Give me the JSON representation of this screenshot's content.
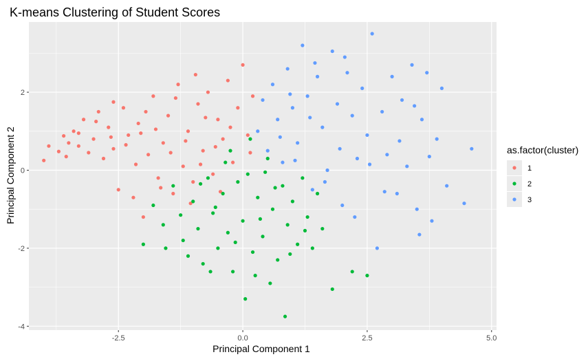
{
  "chart_data": {
    "type": "scatter",
    "title": "K-means Clustering of Student Scores",
    "xlabel": "Principal Component 1",
    "ylabel": "Principal Component 2",
    "xlim": [
      -4.3,
      5.1
    ],
    "ylim": [
      -4.1,
      3.8
    ],
    "x_ticks": [
      -2.5,
      0,
      2.5,
      5
    ],
    "x_tick_labels": [
      "-2.5",
      "0.0",
      "2.5",
      "5.0"
    ],
    "y_ticks": [
      -4,
      -2,
      0,
      2
    ],
    "y_tick_labels": [
      "-4",
      "-2",
      "0",
      "2"
    ],
    "grid": true,
    "legend": {
      "title": "as.factor(cluster)",
      "placement": "right",
      "entries": [
        {
          "label": "1",
          "color": "#F8766D"
        },
        {
          "label": "2",
          "color": "#00BA38"
        },
        {
          "label": "3",
          "color": "#619CFF"
        }
      ]
    },
    "series": [
      {
        "name": "1",
        "color": "#F8766D",
        "points": [
          [
            -4.0,
            0.25
          ],
          [
            -3.9,
            0.62
          ],
          [
            -3.7,
            0.48
          ],
          [
            -3.6,
            0.88
          ],
          [
            -3.5,
            0.7
          ],
          [
            -3.4,
            1.0
          ],
          [
            -3.3,
            0.62
          ],
          [
            -3.2,
            1.3
          ],
          [
            -3.1,
            0.45
          ],
          [
            -3.0,
            0.8
          ],
          [
            -2.9,
            1.5
          ],
          [
            -2.8,
            0.3
          ],
          [
            -2.7,
            1.1
          ],
          [
            -2.6,
            0.55
          ],
          [
            -2.5,
            -0.5
          ],
          [
            -2.4,
            1.6
          ],
          [
            -2.3,
            0.9
          ],
          [
            -2.2,
            -0.7
          ],
          [
            -2.1,
            1.2
          ],
          [
            -2.0,
            -1.2
          ],
          [
            -1.9,
            0.4
          ],
          [
            -1.8,
            1.9
          ],
          [
            -1.7,
            -0.2
          ],
          [
            -1.6,
            0.7
          ],
          [
            -1.5,
            1.4
          ],
          [
            -1.4,
            -0.6
          ],
          [
            -1.3,
            2.2
          ],
          [
            -1.2,
            0.1
          ],
          [
            -1.1,
            1.0
          ],
          [
            -1.0,
            -0.3
          ],
          [
            -0.9,
            1.7
          ],
          [
            -0.8,
            0.5
          ],
          [
            -0.7,
            2.0
          ],
          [
            -0.6,
            -0.1
          ],
          [
            -0.5,
            1.3
          ],
          [
            -0.4,
            0.8
          ],
          [
            -0.3,
            2.3
          ],
          [
            -0.2,
            0.2
          ],
          [
            -0.1,
            1.6
          ],
          [
            0.0,
            2.7
          ],
          [
            0.1,
            0.9
          ],
          [
            0.2,
            1.9
          ],
          [
            -3.3,
            0.95
          ],
          [
            -2.95,
            1.25
          ],
          [
            -2.65,
            0.85
          ],
          [
            -2.35,
            0.65
          ],
          [
            -2.05,
            0.95
          ],
          [
            -1.75,
            1.05
          ],
          [
            -1.45,
            0.45
          ],
          [
            -1.15,
            0.75
          ],
          [
            -0.85,
            0.15
          ],
          [
            -0.55,
            0.6
          ],
          [
            -0.25,
            1.1
          ],
          [
            -1.95,
            1.5
          ],
          [
            -1.35,
            1.85
          ],
          [
            -0.75,
            1.35
          ],
          [
            -2.6,
            1.75
          ],
          [
            -3.55,
            0.35
          ],
          [
            -2.15,
            0.15
          ],
          [
            -1.65,
            -0.45
          ],
          [
            -1.05,
            -0.85
          ],
          [
            -0.45,
            -0.55
          ],
          [
            0.15,
            0.45
          ],
          [
            -0.95,
            2.45
          ]
        ]
      },
      {
        "name": "2",
        "color": "#00BA38",
        "points": [
          [
            -2.0,
            -1.9
          ],
          [
            -1.8,
            -0.9
          ],
          [
            -1.6,
            -1.4
          ],
          [
            -1.4,
            -0.4
          ],
          [
            -1.2,
            -1.8
          ],
          [
            -1.1,
            -2.2
          ],
          [
            -1.0,
            -0.8
          ],
          [
            -0.9,
            -1.5
          ],
          [
            -0.8,
            -2.4
          ],
          [
            -0.7,
            -0.2
          ],
          [
            -0.6,
            -1.1
          ],
          [
            -0.5,
            -2.0
          ],
          [
            -0.4,
            -0.6
          ],
          [
            -0.3,
            -1.6
          ],
          [
            -0.2,
            -2.6
          ],
          [
            -0.1,
            -0.3
          ],
          [
            0.0,
            -1.3
          ],
          [
            0.05,
            -3.3
          ],
          [
            0.1,
            -0.1
          ],
          [
            0.2,
            -2.1
          ],
          [
            0.3,
            -0.7
          ],
          [
            0.4,
            -1.7
          ],
          [
            0.5,
            0.3
          ],
          [
            0.6,
            -1.0
          ],
          [
            0.7,
            -2.3
          ],
          [
            0.8,
            -0.4
          ],
          [
            0.9,
            -1.4
          ],
          [
            0.85,
            -3.75
          ],
          [
            1.0,
            -0.8
          ],
          [
            1.1,
            -1.9
          ],
          [
            1.2,
            -0.2
          ],
          [
            1.3,
            -1.2
          ],
          [
            1.4,
            -2.0
          ],
          [
            1.5,
            -0.6
          ],
          [
            1.8,
            -3.05
          ],
          [
            2.2,
            -2.6
          ],
          [
            2.5,
            -2.7
          ],
          [
            1.6,
            -1.5
          ],
          [
            -0.25,
            0.5
          ],
          [
            0.15,
            0.8
          ],
          [
            -0.55,
            -0.95
          ],
          [
            -0.15,
            -1.85
          ],
          [
            0.35,
            -1.25
          ],
          [
            0.65,
            -0.45
          ],
          [
            0.95,
            -2.15
          ],
          [
            -0.85,
            -0.35
          ],
          [
            -1.25,
            -1.15
          ],
          [
            0.25,
            -2.7
          ],
          [
            -0.35,
            0.2
          ],
          [
            0.45,
            -0.05
          ],
          [
            -0.65,
            -2.6
          ],
          [
            1.25,
            -1.55
          ],
          [
            0.55,
            -2.9
          ],
          [
            -1.55,
            -2.0
          ]
        ]
      },
      {
        "name": "3",
        "color": "#619CFF",
        "points": [
          [
            0.3,
            1.0
          ],
          [
            0.4,
            1.8
          ],
          [
            0.5,
            0.5
          ],
          [
            0.6,
            2.2
          ],
          [
            0.7,
            1.3
          ],
          [
            0.8,
            0.2
          ],
          [
            0.9,
            2.6
          ],
          [
            1.0,
            1.6
          ],
          [
            1.1,
            0.7
          ],
          [
            1.2,
            3.2
          ],
          [
            1.3,
            1.9
          ],
          [
            1.4,
            -0.5
          ],
          [
            1.5,
            2.4
          ],
          [
            1.6,
            1.1
          ],
          [
            1.7,
            0.0
          ],
          [
            1.8,
            3.05
          ],
          [
            1.9,
            1.7
          ],
          [
            2.0,
            -0.9
          ],
          [
            2.1,
            2.5
          ],
          [
            2.2,
            1.4
          ],
          [
            2.3,
            0.3
          ],
          [
            2.4,
            2.1
          ],
          [
            2.5,
            0.9
          ],
          [
            2.6,
            3.5
          ],
          [
            2.7,
            -2.0
          ],
          [
            2.8,
            1.5
          ],
          [
            2.9,
            0.4
          ],
          [
            3.0,
            2.4
          ],
          [
            3.1,
            -0.6
          ],
          [
            3.2,
            1.8
          ],
          [
            3.3,
            0.1
          ],
          [
            3.4,
            2.7
          ],
          [
            3.5,
            -1.0
          ],
          [
            3.6,
            1.3
          ],
          [
            3.7,
            2.5
          ],
          [
            3.8,
            -1.3
          ],
          [
            3.9,
            0.8
          ],
          [
            4.0,
            2.1
          ],
          [
            4.1,
            -0.4
          ],
          [
            4.45,
            -0.85
          ],
          [
            4.6,
            0.55
          ],
          [
            0.75,
            0.85
          ],
          [
            1.05,
            0.25
          ],
          [
            1.35,
            1.35
          ],
          [
            1.65,
            -0.3
          ],
          [
            1.95,
            0.55
          ],
          [
            2.25,
            -1.2
          ],
          [
            2.55,
            0.15
          ],
          [
            2.85,
            -0.55
          ],
          [
            3.15,
            0.75
          ],
          [
            3.45,
            1.65
          ],
          [
            3.75,
            0.35
          ],
          [
            2.05,
            2.9
          ],
          [
            1.45,
            2.75
          ],
          [
            0.95,
            1.95
          ],
          [
            3.55,
            -1.65
          ]
        ]
      }
    ]
  }
}
